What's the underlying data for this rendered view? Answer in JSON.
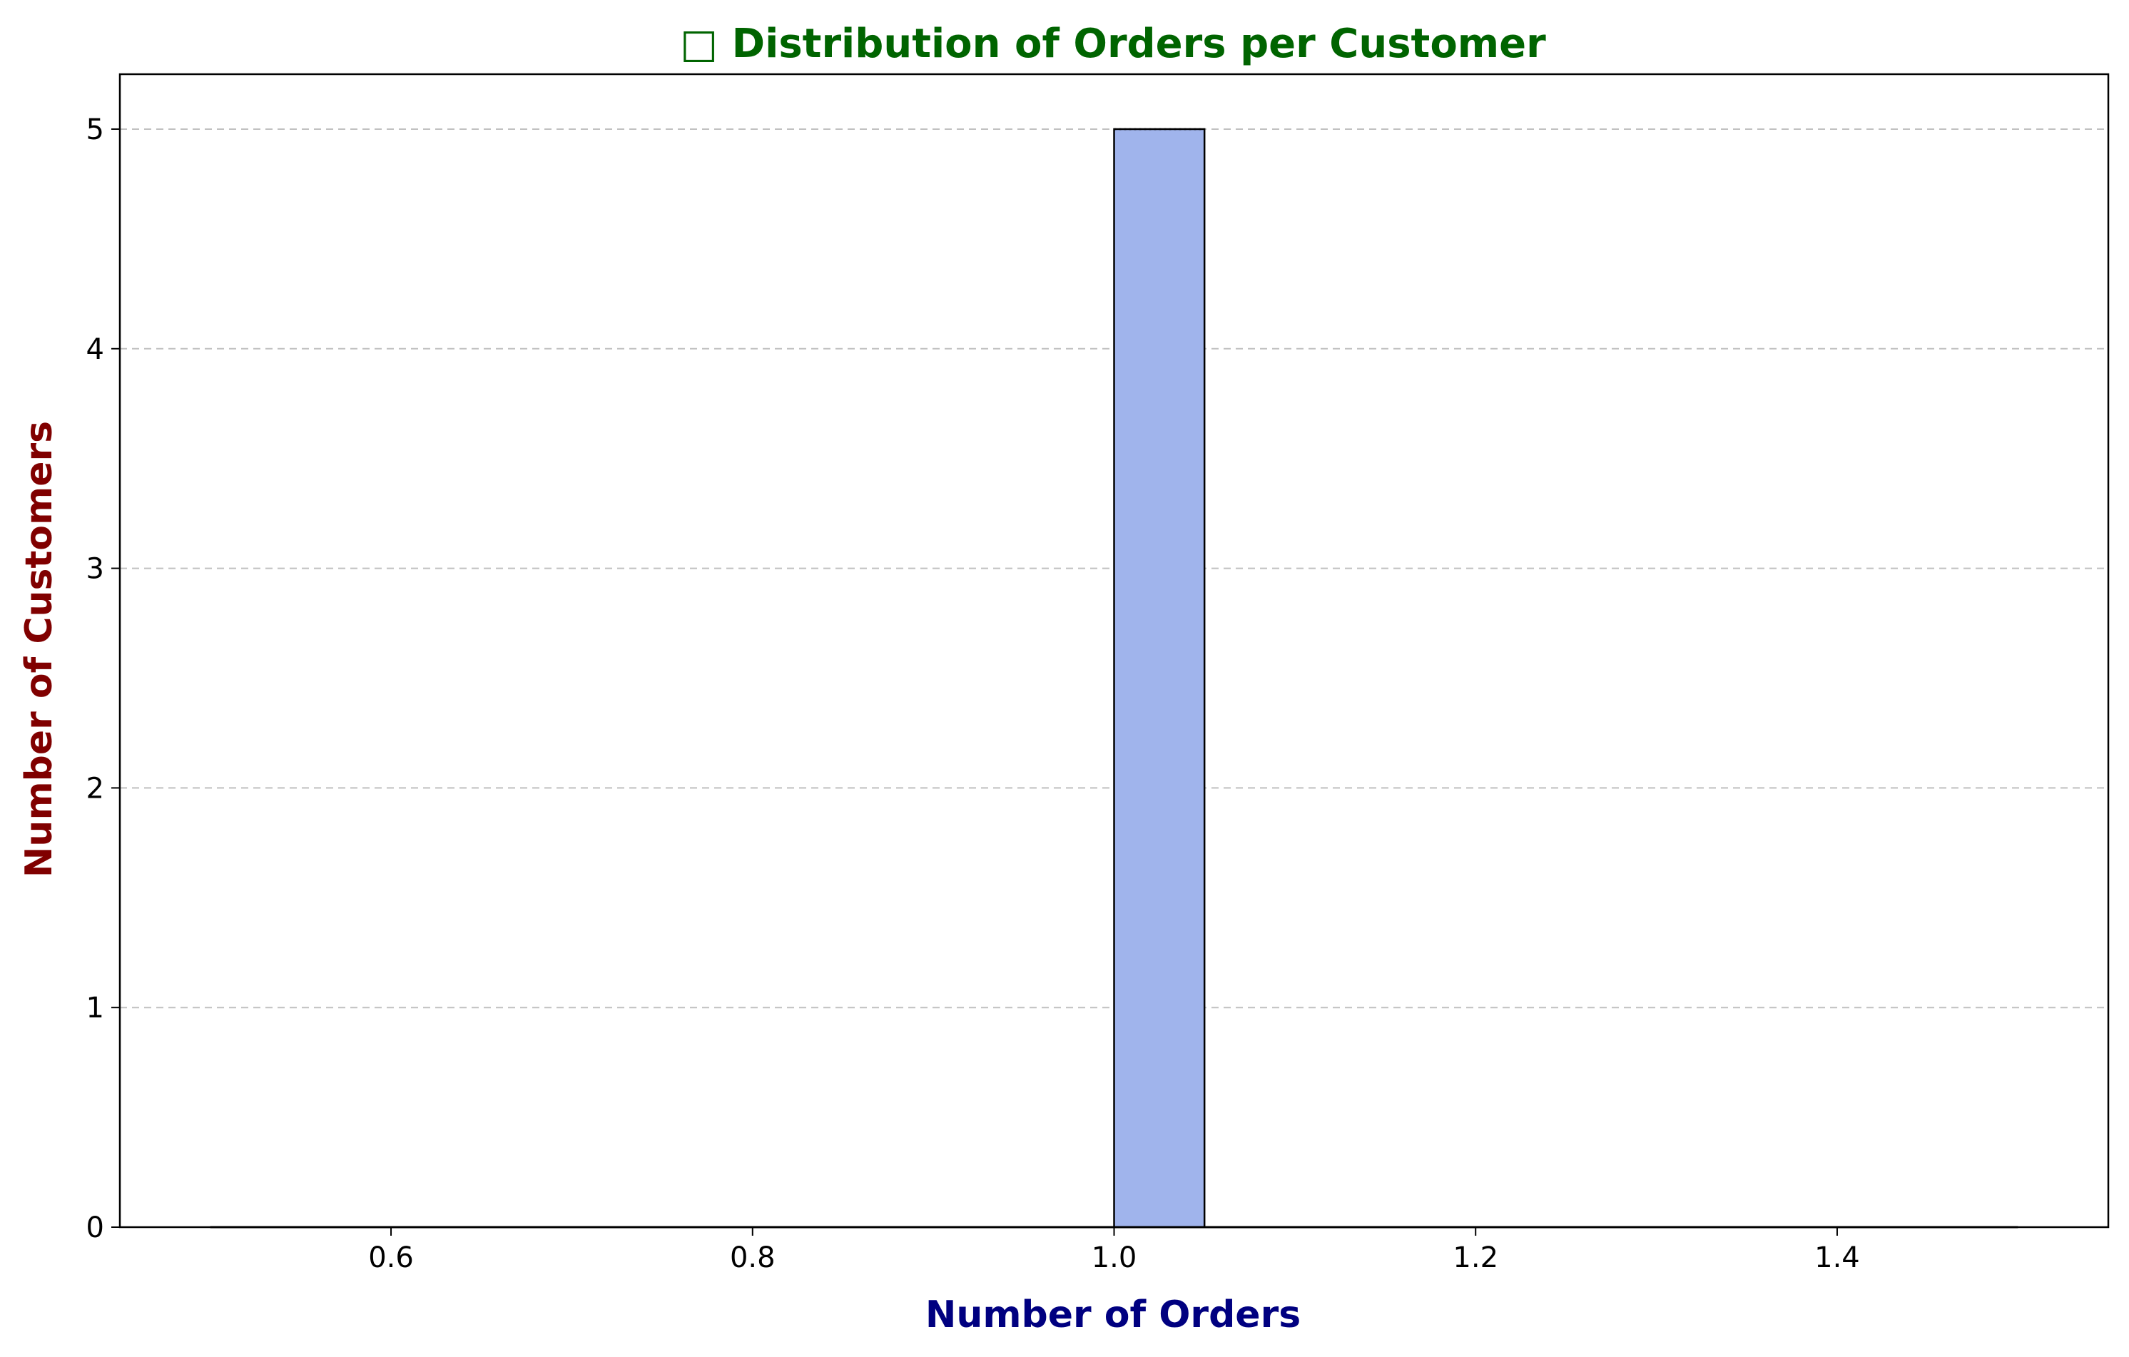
{
  "chart_data": {
    "type": "bar",
    "title": "□ Distribution of Orders per Customer",
    "xlabel": "Number of Orders",
    "ylabel": "Number of Customers",
    "xlim": [
      0.45,
      1.55
    ],
    "ylim": [
      0,
      5.25
    ],
    "x_ticks": [
      "0.6",
      "0.8",
      "1.0",
      "1.2",
      "1.4"
    ],
    "y_ticks": [
      "0",
      "1",
      "2",
      "3",
      "4",
      "5"
    ],
    "grid": "y-dashed",
    "bins": [
      {
        "x0": 1.0,
        "x1": 1.05,
        "count": 5
      }
    ],
    "kde": {
      "x_range": [
        0.5,
        1.5
      ],
      "value": 0
    },
    "colors": {
      "bar": "#a0b4ec",
      "bar_edge": "#000000",
      "title": "#006400",
      "xlabel": "#000080",
      "ylabel": "#800000",
      "grid": "#c0c0c0"
    }
  }
}
